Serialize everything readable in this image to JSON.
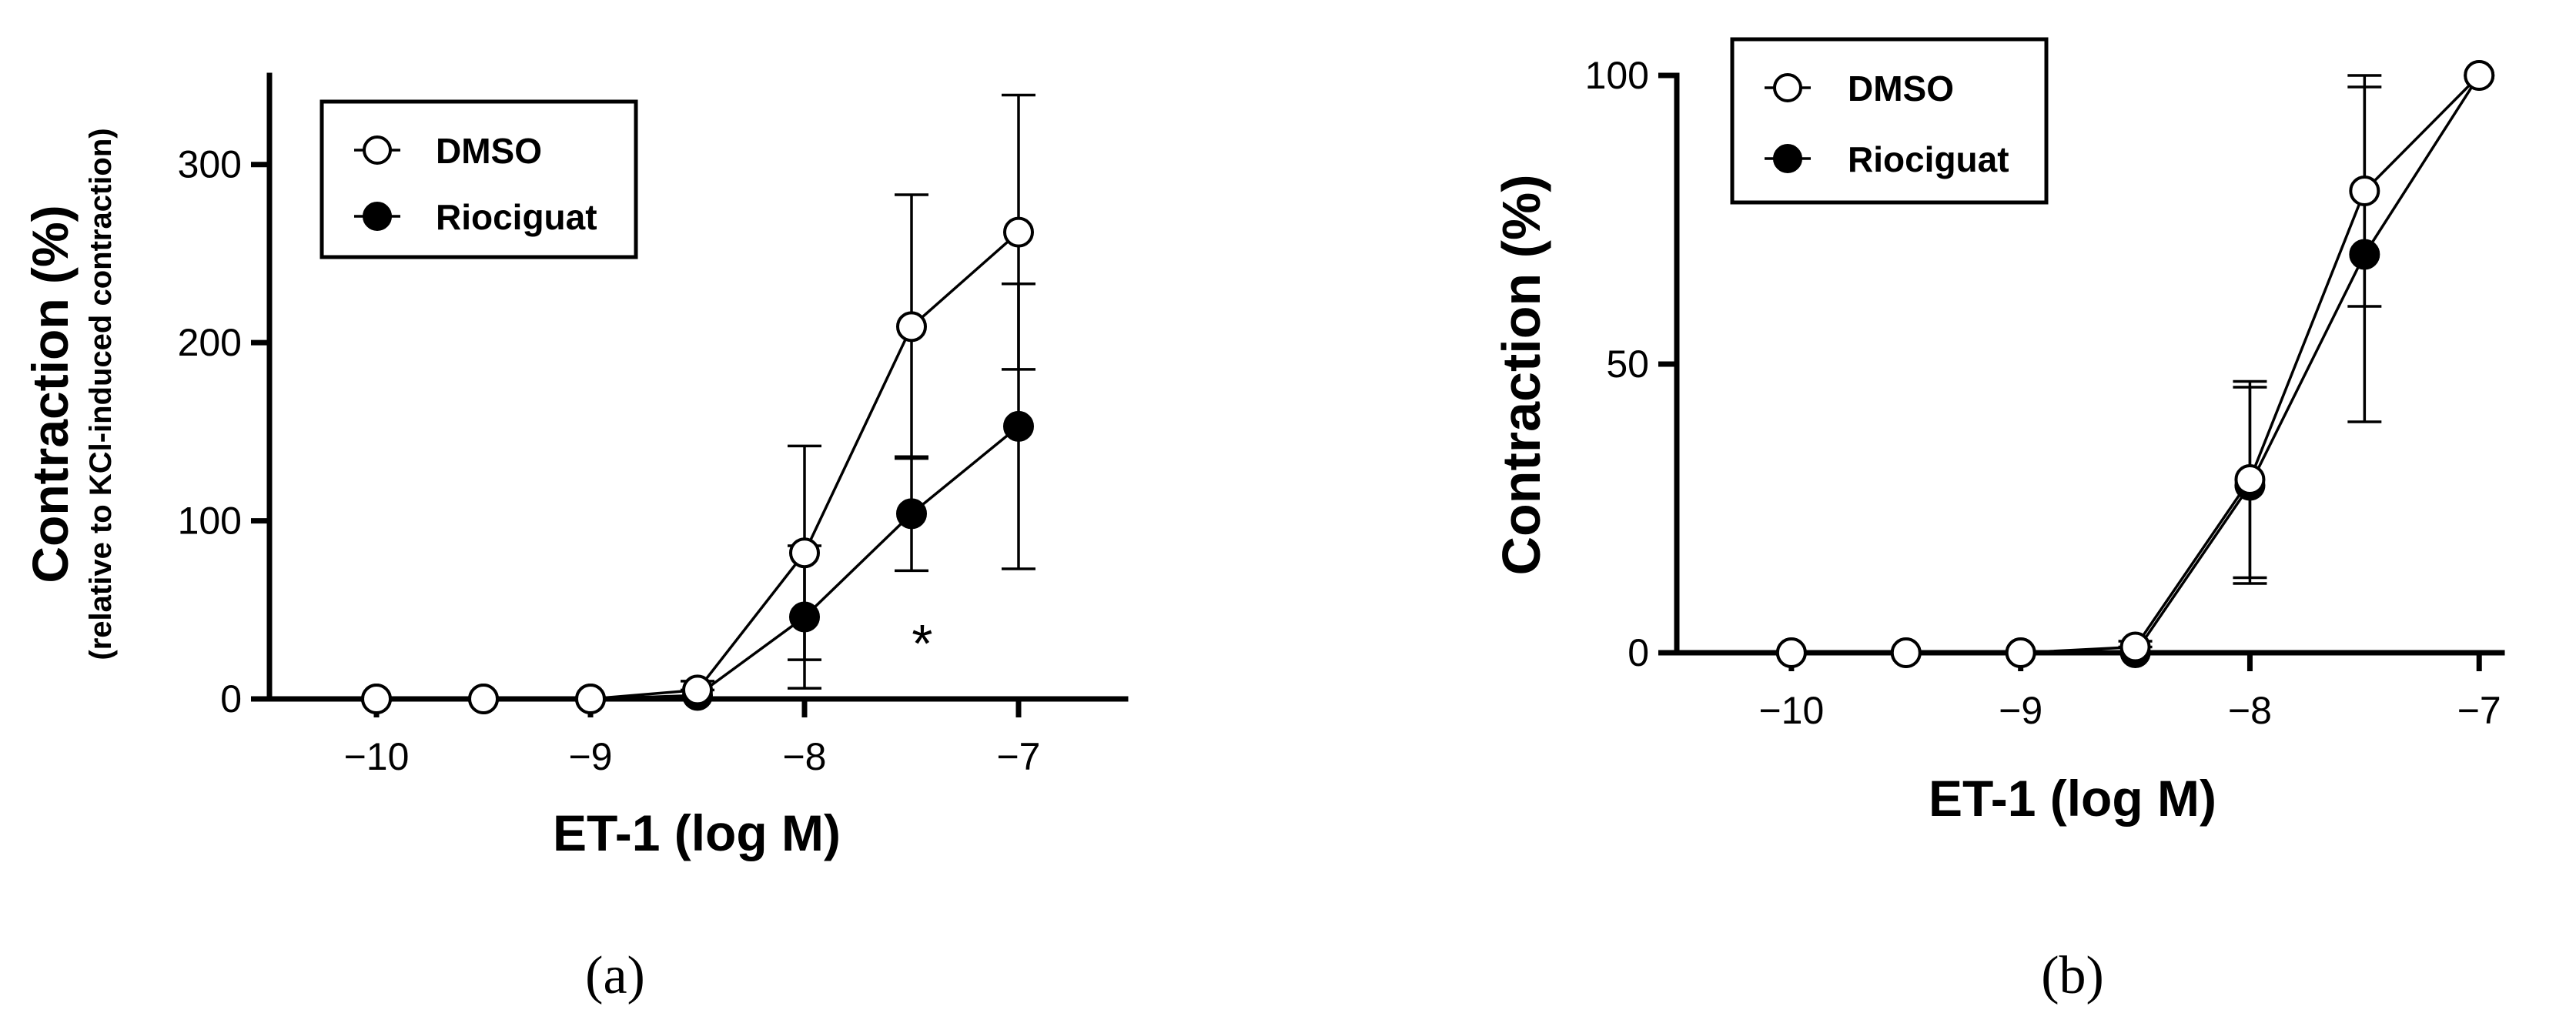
{
  "chart_data": [
    {
      "type": "line",
      "panel_label": "(a)",
      "xlabel": "ET-1 (log M)",
      "ylabel": "Contraction (%)",
      "ylabel_sub": "(relative to KCl-induced contraction)",
      "x": [
        -10,
        -9.5,
        -9,
        -8.5,
        -8,
        -7.5,
        -7
      ],
      "xticks": [
        -10,
        -9,
        -8,
        -7
      ],
      "xtick_labels": [
        "−10",
        "−9",
        "−8",
        "−7"
      ],
      "yticks": [
        0,
        100,
        200,
        300
      ],
      "ytick_labels": [
        "0",
        "100",
        "200",
        "300"
      ],
      "xlim": [
        -10.5,
        -6.5
      ],
      "ylim": [
        0,
        350
      ],
      "series": [
        {
          "name": "DMSO",
          "marker": "open-circle",
          "values": [
            0,
            0,
            0,
            5,
            82,
            209,
            262
          ],
          "err": [
            0,
            0,
            0,
            5,
            60,
            74,
            77
          ]
        },
        {
          "name": "Riociguat",
          "marker": "filled-circle",
          "values": [
            0,
            0,
            0,
            2,
            46,
            104,
            153
          ],
          "err": [
            0,
            0,
            0,
            3,
            40,
            32,
            80
          ]
        }
      ],
      "annotations": [
        {
          "text": "*",
          "x": -7.45,
          "y": 38
        }
      ],
      "legend": {
        "position": "top-left",
        "entries": [
          "DMSO",
          "Riociguat"
        ]
      }
    },
    {
      "type": "line",
      "panel_label": "(b)",
      "xlabel": "ET-1 (log M)",
      "ylabel": "Contraction (%)",
      "x": [
        -10,
        -9.5,
        -9,
        -8.5,
        -8,
        -7.5,
        -7
      ],
      "xticks": [
        -10,
        -9,
        -8,
        -7
      ],
      "xtick_labels": [
        "−10",
        "−9",
        "−8",
        "−7"
      ],
      "yticks": [
        0,
        50,
        100
      ],
      "ytick_labels": [
        "0",
        "50",
        "100"
      ],
      "xlim": [
        -10.5,
        -6.9
      ],
      "ylim": [
        0,
        100
      ],
      "series": [
        {
          "name": "DMSO",
          "marker": "open-circle",
          "values": [
            0,
            0,
            0,
            1,
            30,
            80,
            100
          ],
          "err": [
            0,
            0,
            0,
            1,
            17,
            20,
            0
          ]
        },
        {
          "name": "Riociguat",
          "marker": "filled-circle",
          "values": [
            0,
            0,
            0,
            0,
            29,
            69,
            100
          ],
          "err": [
            0,
            0,
            0,
            1,
            17,
            29,
            0
          ]
        }
      ],
      "annotations": [],
      "legend": {
        "position": "top-left",
        "entries": [
          "DMSO",
          "Riociguat"
        ]
      }
    }
  ]
}
